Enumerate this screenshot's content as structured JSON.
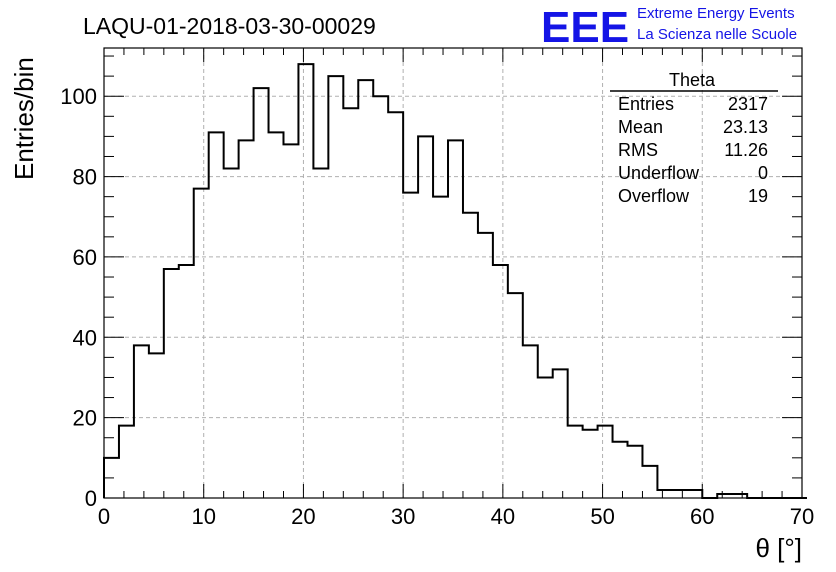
{
  "title": "LAQU-01-2018-03-30-00029",
  "logo": {
    "mark": "EEE",
    "line1": "Extreme Energy Events",
    "line2": "La Scienza nelle Scuole",
    "color": "#1414e6"
  },
  "stats_box": {
    "name": "Theta",
    "rows": [
      {
        "label": "Entries",
        "value": "2317"
      },
      {
        "label": "Mean",
        "value": "23.13"
      },
      {
        "label": "RMS",
        "value": "11.26"
      },
      {
        "label": "Underflow",
        "value": "0"
      },
      {
        "label": "Overflow",
        "value": "19"
      }
    ]
  },
  "chart_data": {
    "type": "histogram",
    "xlabel": "θ [°]",
    "ylabel": "Entries/bin",
    "xlim": [
      0,
      70
    ],
    "ylim": [
      0,
      112
    ],
    "grid": true,
    "x_ticks": [
      0,
      10,
      20,
      30,
      40,
      50,
      60,
      70
    ],
    "y_ticks": [
      0,
      20,
      40,
      60,
      80,
      100
    ],
    "bin_width": 1.5,
    "bin_edges_start": 0,
    "values": [
      10,
      18,
      38,
      36,
      57,
      58,
      77,
      91,
      82,
      89,
      102,
      91,
      88,
      108,
      82,
      105,
      97,
      104,
      100,
      96,
      76,
      90,
      75,
      89,
      71,
      66,
      58,
      51,
      38,
      30,
      32,
      18,
      17,
      18,
      14,
      13,
      8,
      2,
      2,
      2,
      0,
      1,
      1,
      0,
      0,
      0,
      0
    ],
    "line_color": "#000000"
  }
}
